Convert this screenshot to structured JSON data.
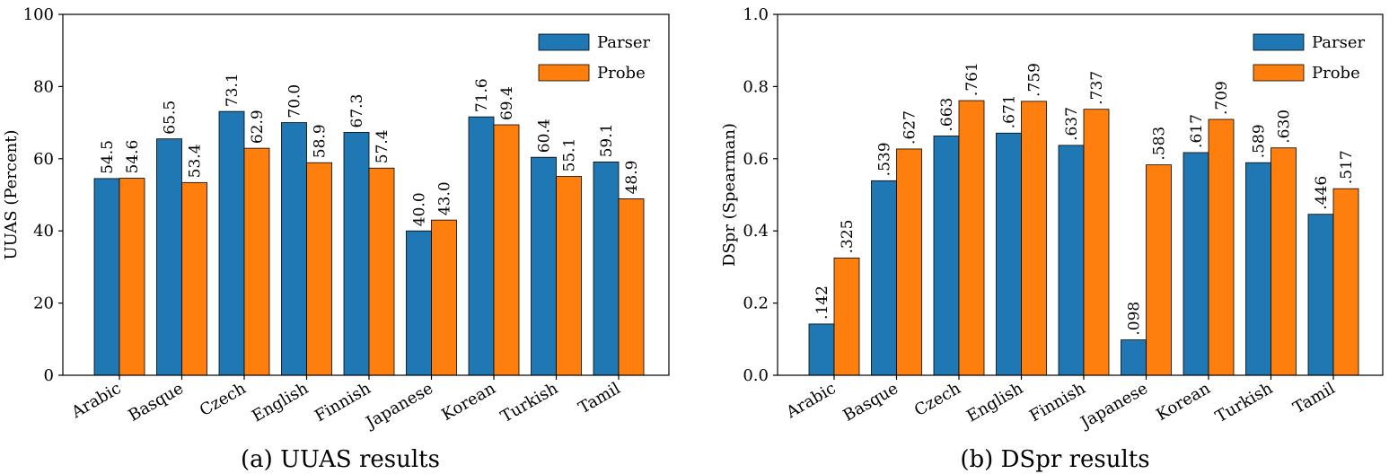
{
  "colors": {
    "parser": "#1f77b4",
    "probe": "#ff7f0e"
  },
  "chart_data": [
    {
      "type": "bar",
      "caption": "(a) UUAS results",
      "categories": [
        "Arabic",
        "Basque",
        "Czech",
        "English",
        "Finnish",
        "Japanese",
        "Korean",
        "Turkish",
        "Tamil"
      ],
      "series": [
        {
          "name": "Parser",
          "values": [
            54.5,
            65.5,
            73.1,
            70.0,
            67.3,
            40.0,
            71.6,
            60.4,
            59.1
          ],
          "labels": [
            "54.5",
            "65.5",
            "73.1",
            "70.0",
            "67.3",
            "40.0",
            "71.6",
            "60.4",
            "59.1"
          ]
        },
        {
          "name": "Probe",
          "values": [
            54.6,
            53.4,
            62.9,
            58.9,
            57.4,
            43.0,
            69.4,
            55.1,
            48.9
          ],
          "labels": [
            "54.6",
            "53.4",
            "62.9",
            "58.9",
            "57.4",
            "43.0",
            "69.4",
            "55.1",
            "48.9"
          ]
        }
      ],
      "ylabel": "UUAS (Percent)",
      "ylim": [
        0,
        100
      ],
      "yticks": [
        0,
        20,
        40,
        60,
        80,
        100
      ],
      "ytick_labels": [
        "0",
        "20",
        "40",
        "60",
        "80",
        "100"
      ],
      "legend": "top-right",
      "grid": false
    },
    {
      "type": "bar",
      "caption": "(b) DSpr results",
      "categories": [
        "Arabic",
        "Basque",
        "Czech",
        "English",
        "Finnish",
        "Japanese",
        "Korean",
        "Turkish",
        "Tamil"
      ],
      "series": [
        {
          "name": "Parser",
          "values": [
            0.142,
            0.539,
            0.663,
            0.671,
            0.637,
            0.098,
            0.617,
            0.589,
            0.446
          ],
          "labels": [
            ".142",
            ".539",
            ".663",
            ".671",
            ".637",
            ".098",
            ".617",
            ".589",
            ".446"
          ]
        },
        {
          "name": "Probe",
          "values": [
            0.325,
            0.627,
            0.761,
            0.759,
            0.737,
            0.583,
            0.709,
            0.63,
            0.517
          ],
          "labels": [
            ".325",
            ".627",
            ".761",
            ".759",
            ".737",
            ".583",
            ".709",
            ".630",
            ".517"
          ]
        }
      ],
      "ylabel": "DSpr (Spearman)",
      "ylim": [
        0,
        1.0
      ],
      "yticks": [
        0,
        0.2,
        0.4,
        0.6,
        0.8,
        1.0
      ],
      "ytick_labels": [
        "0.0",
        "0.2",
        "0.4",
        "0.6",
        "0.8",
        "1.0"
      ],
      "legend": "top-right",
      "grid": false
    }
  ]
}
